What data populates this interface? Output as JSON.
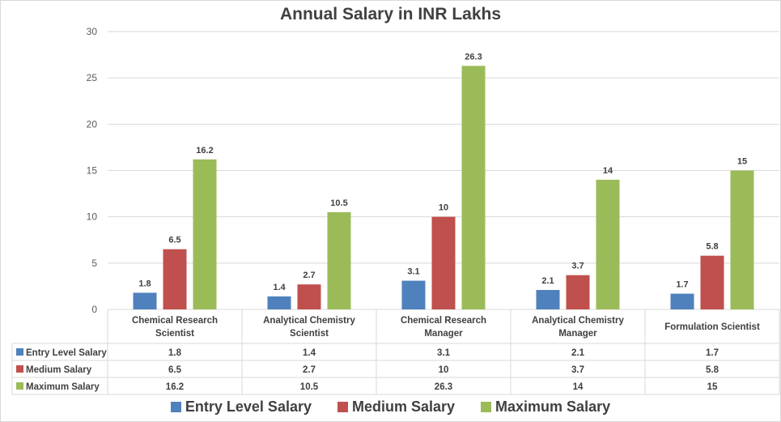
{
  "chart_data": {
    "type": "bar",
    "title": "Annual Salary in INR Lakhs",
    "xlabel": "",
    "ylabel": "",
    "ylim": [
      0,
      30
    ],
    "yticks": [
      0,
      5,
      10,
      15,
      20,
      25,
      30
    ],
    "grid": true,
    "legend_position": "bottom",
    "data_table": true,
    "categories": [
      "Chemical Research Scientist",
      "Analytical Chemistry Scientist",
      "Chemical Research Manager",
      "Analytical Chemistry Manager",
      "Formulation Scientist"
    ],
    "category_lines": [
      [
        "Chemical Research",
        "Scientist"
      ],
      [
        "Analytical Chemistry",
        "Scientist"
      ],
      [
        "Chemical Research",
        "Manager"
      ],
      [
        "Analytical Chemistry",
        "Manager"
      ],
      [
        "Formulation Scientist"
      ]
    ],
    "series": [
      {
        "name": "Entry Level Salary",
        "color": "#4f81bd",
        "values": [
          1.8,
          1.4,
          3.1,
          2.1,
          1.7
        ]
      },
      {
        "name": "Medium Salary",
        "color": "#c0504d",
        "values": [
          6.5,
          2.7,
          10,
          3.7,
          5.8
        ]
      },
      {
        "name": "Maximum Salary",
        "color": "#9bbb59",
        "values": [
          16.2,
          10.5,
          26.3,
          14,
          15
        ]
      }
    ]
  }
}
